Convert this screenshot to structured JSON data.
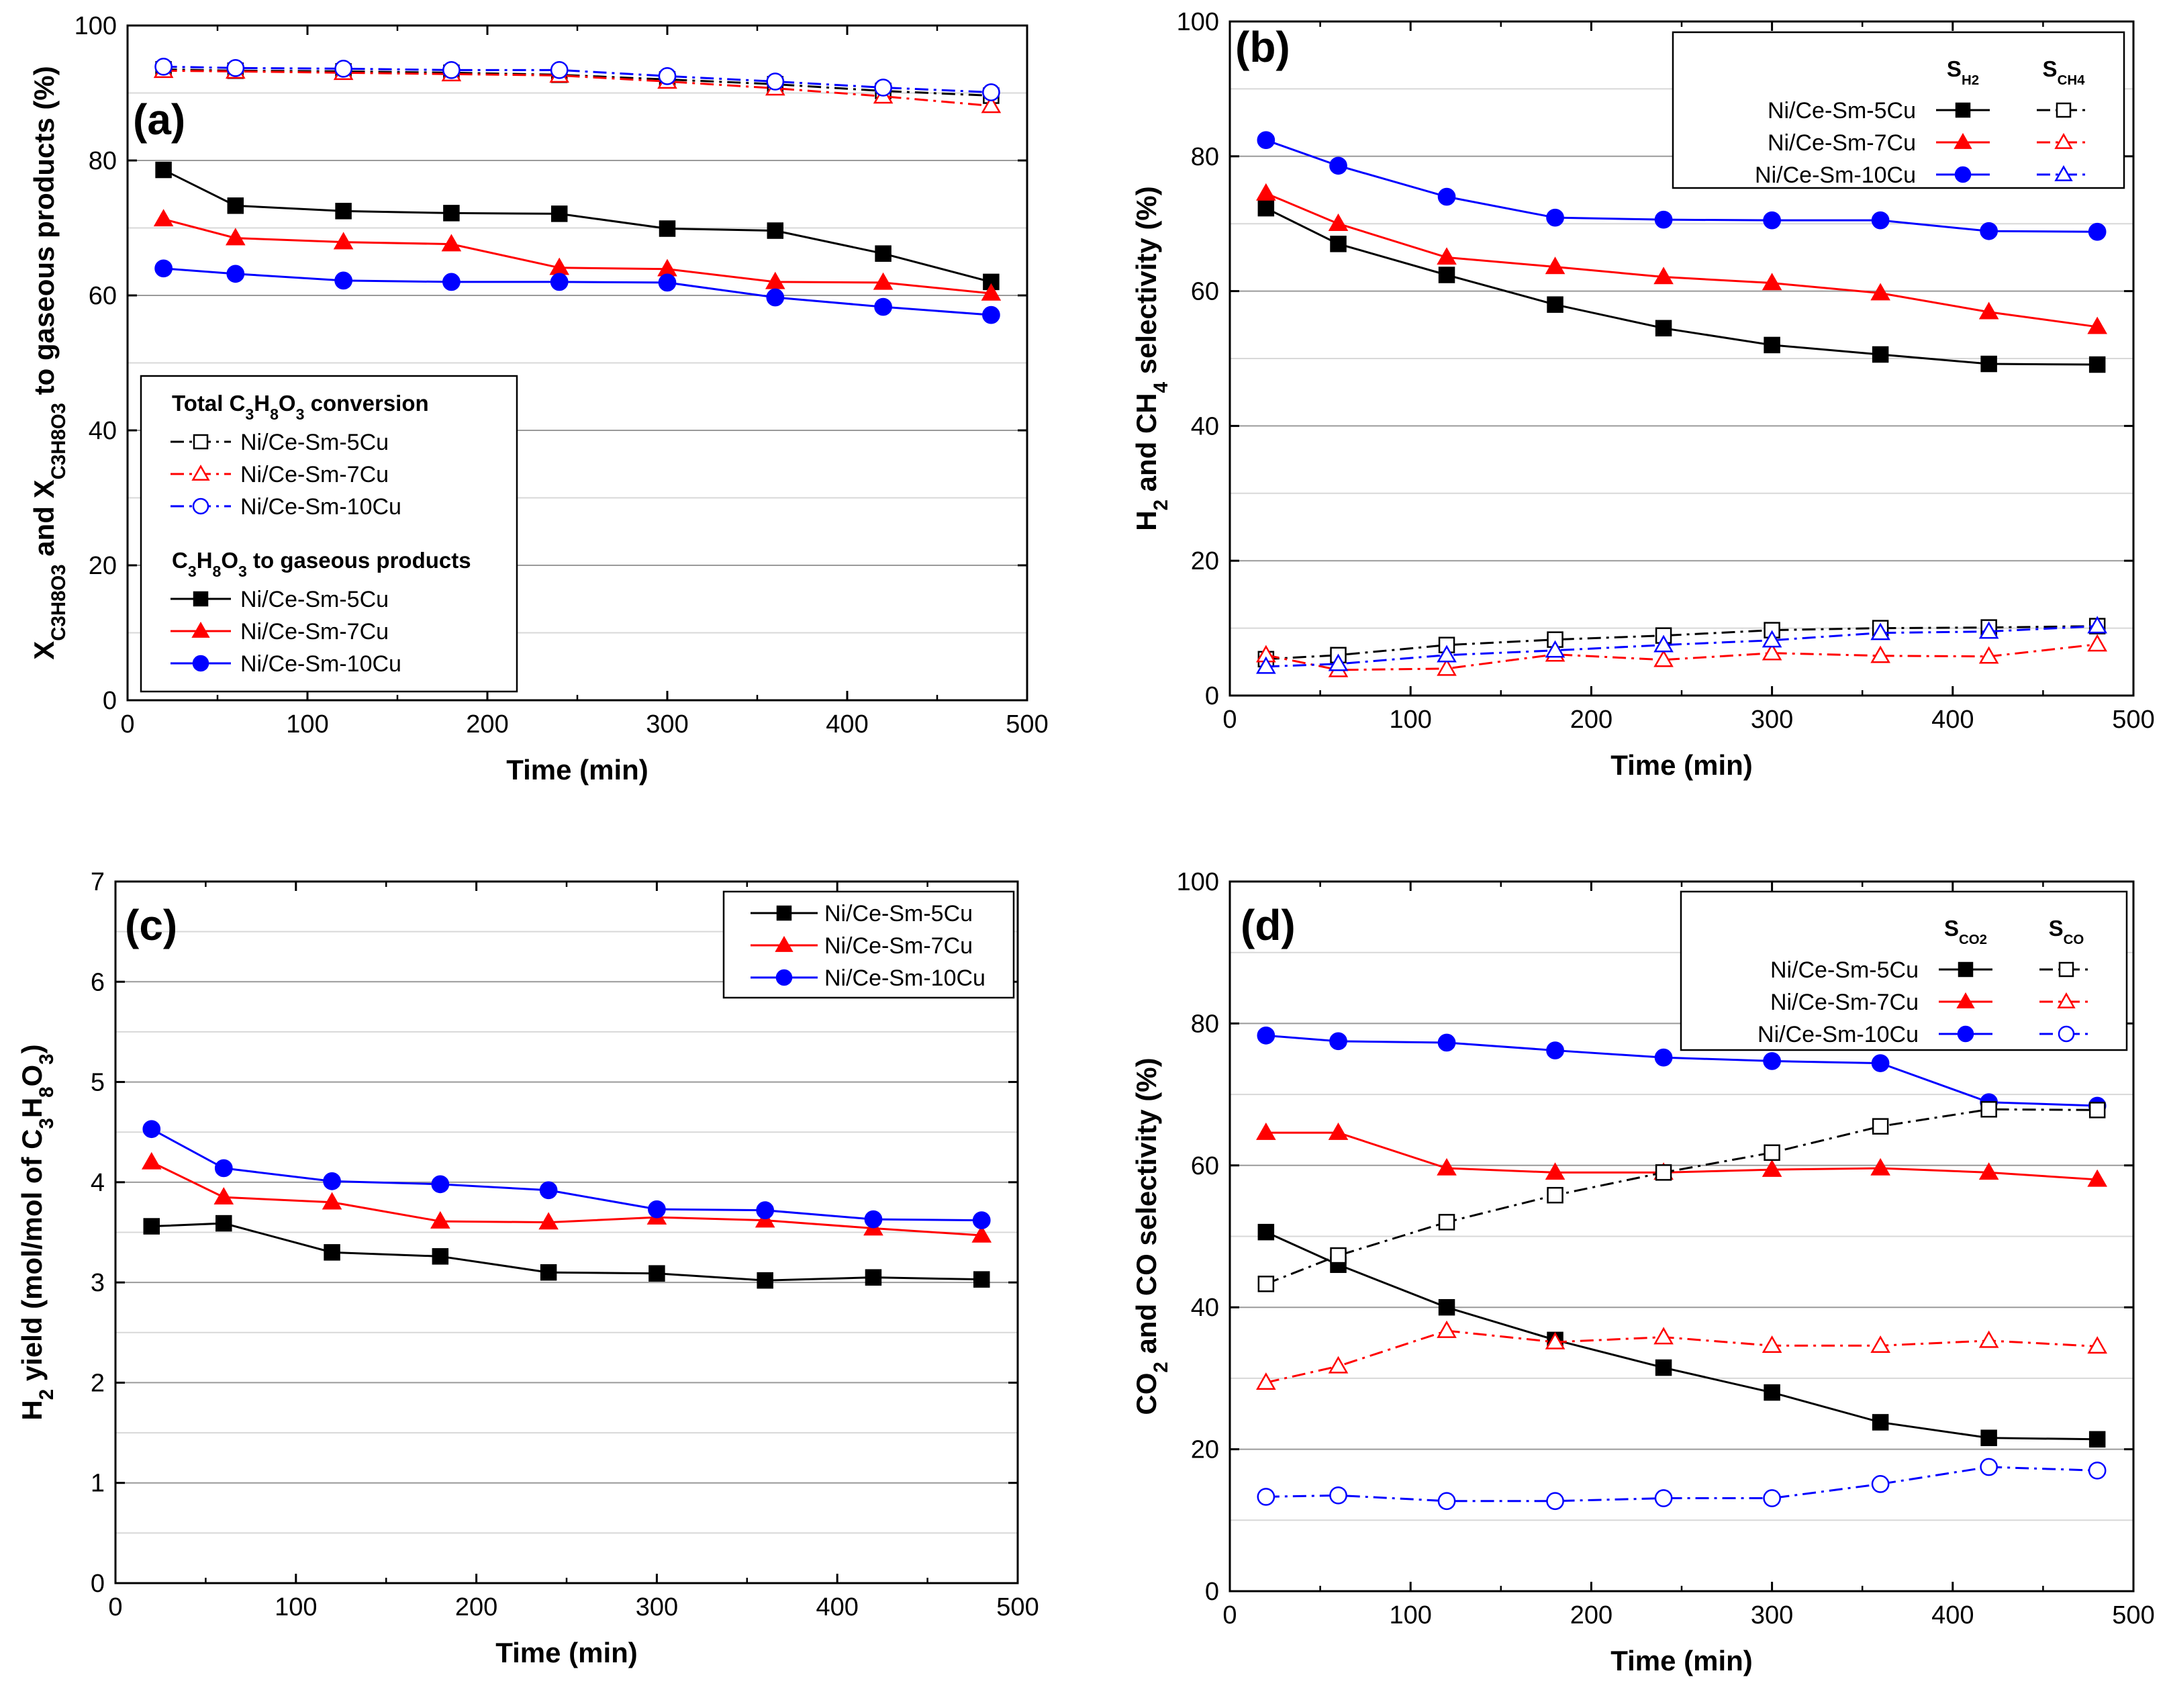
{
  "figure": {
    "title": ""
  },
  "chart_data": [
    {
      "type": "line",
      "panel": "(a)",
      "xlabel": "Time (min)",
      "ylabel_parts": [
        {
          "t": "X"
        },
        {
          "t": "C3H8O3",
          "sub": true
        },
        {
          "t": " and X"
        },
        {
          "t": "C3H8O3",
          "sub": true
        },
        {
          "t": " to gaseous products (%)"
        }
      ],
      "xlim": [
        0,
        500
      ],
      "ylim": [
        0,
        100
      ],
      "xticks": [
        0,
        100,
        200,
        300,
        400,
        500
      ],
      "yticks": [
        0,
        20,
        40,
        60,
        80,
        100
      ],
      "x": [
        20,
        60,
        120,
        180,
        240,
        300,
        360,
        420,
        480
      ],
      "legend_position": "bottom-left",
      "legend_groups": [
        {
          "title_parts": [
            {
              "t": "Total C"
            },
            {
              "t": "3",
              "sub": true
            },
            {
              "t": "H"
            },
            {
              "t": "8",
              "sub": true
            },
            {
              "t": "O"
            },
            {
              "t": "3",
              "sub": true
            },
            {
              "t": " conversion"
            }
          ],
          "series": [
            0,
            1,
            2
          ]
        },
        {
          "title_parts": [
            {
              "t": "C"
            },
            {
              "t": "3",
              "sub": true
            },
            {
              "t": "H"
            },
            {
              "t": "8",
              "sub": true
            },
            {
              "t": "O"
            },
            {
              "t": "3",
              "sub": true
            },
            {
              "t": " to gaseous products"
            }
          ],
          "series": [
            3,
            4,
            5
          ]
        }
      ],
      "series": [
        {
          "name": "Ni/Ce-Sm-5Cu",
          "color": "#000000",
          "marker": "square",
          "filled": false,
          "dash": "dashdot",
          "values": [
            93.5,
            93.3,
            93.2,
            93.0,
            92.7,
            92.0,
            91.3,
            90.3,
            89.6
          ]
        },
        {
          "name": "Ni/Ce-Sm-7Cu",
          "color": "#ff0000",
          "marker": "triangle",
          "filled": false,
          "dash": "dashdot",
          "values": [
            93.3,
            93.2,
            93.0,
            92.8,
            92.6,
            91.7,
            90.7,
            89.5,
            88.1
          ]
        },
        {
          "name": "Ni/Ce-Sm-10Cu",
          "color": "#0000ff",
          "marker": "circle",
          "filled": false,
          "dash": "dashdot",
          "values": [
            93.9,
            93.7,
            93.6,
            93.4,
            93.4,
            92.5,
            91.7,
            90.8,
            90.1
          ]
        },
        {
          "name": "Ni/Ce-Sm-5Cu",
          "color": "#000000",
          "marker": "square",
          "filled": true,
          "dash": "solid",
          "values": [
            78.6,
            73.3,
            72.5,
            72.2,
            72.1,
            69.9,
            69.6,
            66.2,
            62.0
          ]
        },
        {
          "name": "Ni/Ce-Sm-7Cu",
          "color": "#ff0000",
          "marker": "triangle",
          "filled": true,
          "dash": "solid",
          "values": [
            71.3,
            68.5,
            67.9,
            67.6,
            64.1,
            63.9,
            62.0,
            61.9,
            60.3
          ]
        },
        {
          "name": "Ni/Ce-Sm-10Cu",
          "color": "#0000ff",
          "marker": "circle",
          "filled": true,
          "dash": "solid",
          "values": [
            64.0,
            63.2,
            62.2,
            62.0,
            62.0,
            61.9,
            59.7,
            58.3,
            57.1
          ]
        }
      ]
    },
    {
      "type": "line",
      "panel": "(b)",
      "xlabel": "Time (min)",
      "ylabel_parts": [
        {
          "t": "H"
        },
        {
          "t": "2",
          "sub": true
        },
        {
          "t": " and CH"
        },
        {
          "t": "4",
          "sub": true
        },
        {
          "t": " selectivity (%)"
        }
      ],
      "xlim": [
        0,
        500
      ],
      "ylim": [
        0,
        100
      ],
      "xticks": [
        0,
        100,
        200,
        300,
        400,
        500
      ],
      "yticks": [
        0,
        20,
        40,
        60,
        80,
        100
      ],
      "x": [
        20,
        60,
        120,
        180,
        240,
        300,
        360,
        420,
        480
      ],
      "legend_position": "top-right",
      "legend_columns": [
        {
          "label": "S",
          "sub": "H2"
        },
        {
          "label": "S",
          "sub": "CH4"
        }
      ],
      "legend_rows": [
        {
          "name": "Ni/Ce-Sm-5Cu",
          "series": [
            0,
            3
          ]
        },
        {
          "name": "Ni/Ce-Sm-7Cu",
          "series": [
            1,
            4
          ]
        },
        {
          "name": "Ni/Ce-Sm-10Cu",
          "series": [
            2,
            5
          ]
        }
      ],
      "series": [
        {
          "name": "Ni/Ce-Sm-5Cu S_H2",
          "color": "#000000",
          "marker": "square",
          "filled": true,
          "dash": "solid",
          "values": [
            72.3,
            67.0,
            62.4,
            58.0,
            54.5,
            52.0,
            50.6,
            49.2,
            49.1
          ]
        },
        {
          "name": "Ni/Ce-Sm-7Cu S_H2",
          "color": "#ff0000",
          "marker": "triangle",
          "filled": true,
          "dash": "solid",
          "values": [
            74.5,
            70.0,
            65.0,
            63.6,
            62.1,
            61.2,
            59.7,
            56.9,
            54.7
          ]
        },
        {
          "name": "Ni/Ce-Sm-10Cu S_H2",
          "color": "#0000ff",
          "marker": "circle",
          "filled": true,
          "dash": "solid",
          "values": [
            82.4,
            78.6,
            74.0,
            70.9,
            70.6,
            70.5,
            70.5,
            68.9,
            68.8
          ]
        },
        {
          "name": "Ni/Ce-Sm-5Cu S_CH4",
          "color": "#000000",
          "marker": "square",
          "filled": false,
          "dash": "dashdot",
          "values": [
            5.4,
            6.0,
            7.5,
            8.3,
            8.9,
            9.7,
            10.0,
            10.1,
            10.3
          ]
        },
        {
          "name": "Ni/Ce-Sm-7Cu S_CH4",
          "color": "#ff0000",
          "marker": "triangle",
          "filled": false,
          "dash": "dashdot",
          "values": [
            6.0,
            3.8,
            4.0,
            6.1,
            5.3,
            6.3,
            5.9,
            5.8,
            7.6
          ]
        },
        {
          "name": "Ni/Ce-Sm-10Cu S_CH4",
          "color": "#0000ff",
          "marker": "triangle",
          "filled": false,
          "dash": "dashdot",
          "values": [
            4.3,
            4.7,
            6.0,
            6.7,
            7.5,
            8.2,
            9.3,
            9.5,
            10.3
          ]
        }
      ]
    },
    {
      "type": "line",
      "panel": "(c)",
      "xlabel": "Time (min)",
      "ylabel_parts": [
        {
          "t": "H"
        },
        {
          "t": "2",
          "sub": true
        },
        {
          "t": " yield (mol/mol of C"
        },
        {
          "t": "3",
          "sub": true
        },
        {
          "t": "H"
        },
        {
          "t": "8",
          "sub": true
        },
        {
          "t": "O"
        },
        {
          "t": "3",
          "sub": true
        },
        {
          "t": ")"
        }
      ],
      "xlim": [
        0,
        500
      ],
      "ylim": [
        0,
        7
      ],
      "xticks": [
        0,
        100,
        200,
        300,
        400,
        500
      ],
      "yticks": [
        0,
        1,
        2,
        3,
        4,
        5,
        6,
        7
      ],
      "x": [
        20,
        60,
        120,
        180,
        240,
        300,
        360,
        420,
        480
      ],
      "legend_position": "top-right",
      "series": [
        {
          "name": "Ni/Ce-Sm-5Cu",
          "color": "#000000",
          "marker": "square",
          "filled": true,
          "dash": "solid",
          "values": [
            3.56,
            3.59,
            3.3,
            3.26,
            3.1,
            3.09,
            3.02,
            3.05,
            3.03
          ]
        },
        {
          "name": "Ni/Ce-Sm-7Cu",
          "color": "#ff0000",
          "marker": "triangle",
          "filled": true,
          "dash": "solid",
          "values": [
            4.2,
            3.85,
            3.8,
            3.61,
            3.6,
            3.65,
            3.62,
            3.54,
            3.47
          ]
        },
        {
          "name": "Ni/Ce-Sm-10Cu",
          "color": "#0000ff",
          "marker": "circle",
          "filled": true,
          "dash": "solid",
          "values": [
            4.53,
            4.14,
            4.01,
            3.98,
            3.92,
            3.73,
            3.72,
            3.63,
            3.62
          ]
        }
      ]
    },
    {
      "type": "line",
      "panel": "(d)",
      "xlabel": "Time (min)",
      "ylabel_parts": [
        {
          "t": "CO"
        },
        {
          "t": "2",
          "sub": true
        },
        {
          "t": " and CO selectivity (%)"
        }
      ],
      "xlim": [
        0,
        500
      ],
      "ylim": [
        0,
        100
      ],
      "xticks": [
        0,
        100,
        200,
        300,
        400,
        500
      ],
      "yticks": [
        0,
        20,
        40,
        60,
        80,
        100
      ],
      "x": [
        20,
        60,
        120,
        180,
        240,
        300,
        360,
        420,
        480
      ],
      "legend_position": "top-right",
      "legend_columns": [
        {
          "label": "S",
          "sub": "CO2"
        },
        {
          "label": "S",
          "sub": "CO"
        }
      ],
      "legend_rows": [
        {
          "name": "Ni/Ce-Sm-5Cu",
          "series": [
            0,
            3
          ]
        },
        {
          "name": "Ni/Ce-Sm-7Cu",
          "series": [
            1,
            4
          ]
        },
        {
          "name": "Ni/Ce-Sm-10Cu",
          "series": [
            2,
            5
          ]
        }
      ],
      "series": [
        {
          "name": "Ni/Ce-Sm-5Cu S_CO2",
          "color": "#000000",
          "marker": "square",
          "filled": true,
          "dash": "solid",
          "values": [
            50.6,
            46.0,
            40.0,
            35.4,
            31.5,
            28.0,
            23.8,
            21.6,
            21.4
          ]
        },
        {
          "name": "Ni/Ce-Sm-7Cu S_CO2",
          "color": "#ff0000",
          "marker": "triangle",
          "filled": true,
          "dash": "solid",
          "values": [
            64.6,
            64.6,
            59.6,
            59.0,
            59.0,
            59.4,
            59.6,
            59.0,
            58.0
          ]
        },
        {
          "name": "Ni/Ce-Sm-10Cu S_CO2",
          "color": "#0000ff",
          "marker": "circle",
          "filled": true,
          "dash": "solid",
          "values": [
            78.3,
            77.5,
            77.3,
            76.2,
            75.2,
            74.7,
            74.4,
            68.9,
            68.4
          ]
        },
        {
          "name": "Ni/Ce-Sm-5Cu S_CO",
          "color": "#000000",
          "marker": "square",
          "filled": false,
          "dash": "dashdot",
          "values": [
            43.3,
            47.3,
            52.0,
            55.8,
            59.0,
            61.8,
            65.5,
            67.9,
            67.8
          ]
        },
        {
          "name": "Ni/Ce-Sm-7Cu S_CO",
          "color": "#ff0000",
          "marker": "triangle",
          "filled": false,
          "dash": "dashdot",
          "values": [
            29.4,
            31.7,
            36.7,
            35.1,
            35.8,
            34.6,
            34.6,
            35.3,
            34.5
          ]
        },
        {
          "name": "Ni/Ce-Sm-10Cu S_CO",
          "color": "#0000ff",
          "marker": "circle",
          "filled": false,
          "dash": "dashdot",
          "values": [
            13.3,
            13.5,
            12.7,
            12.7,
            13.1,
            13.1,
            15.1,
            17.5,
            17.0
          ]
        }
      ]
    }
  ]
}
